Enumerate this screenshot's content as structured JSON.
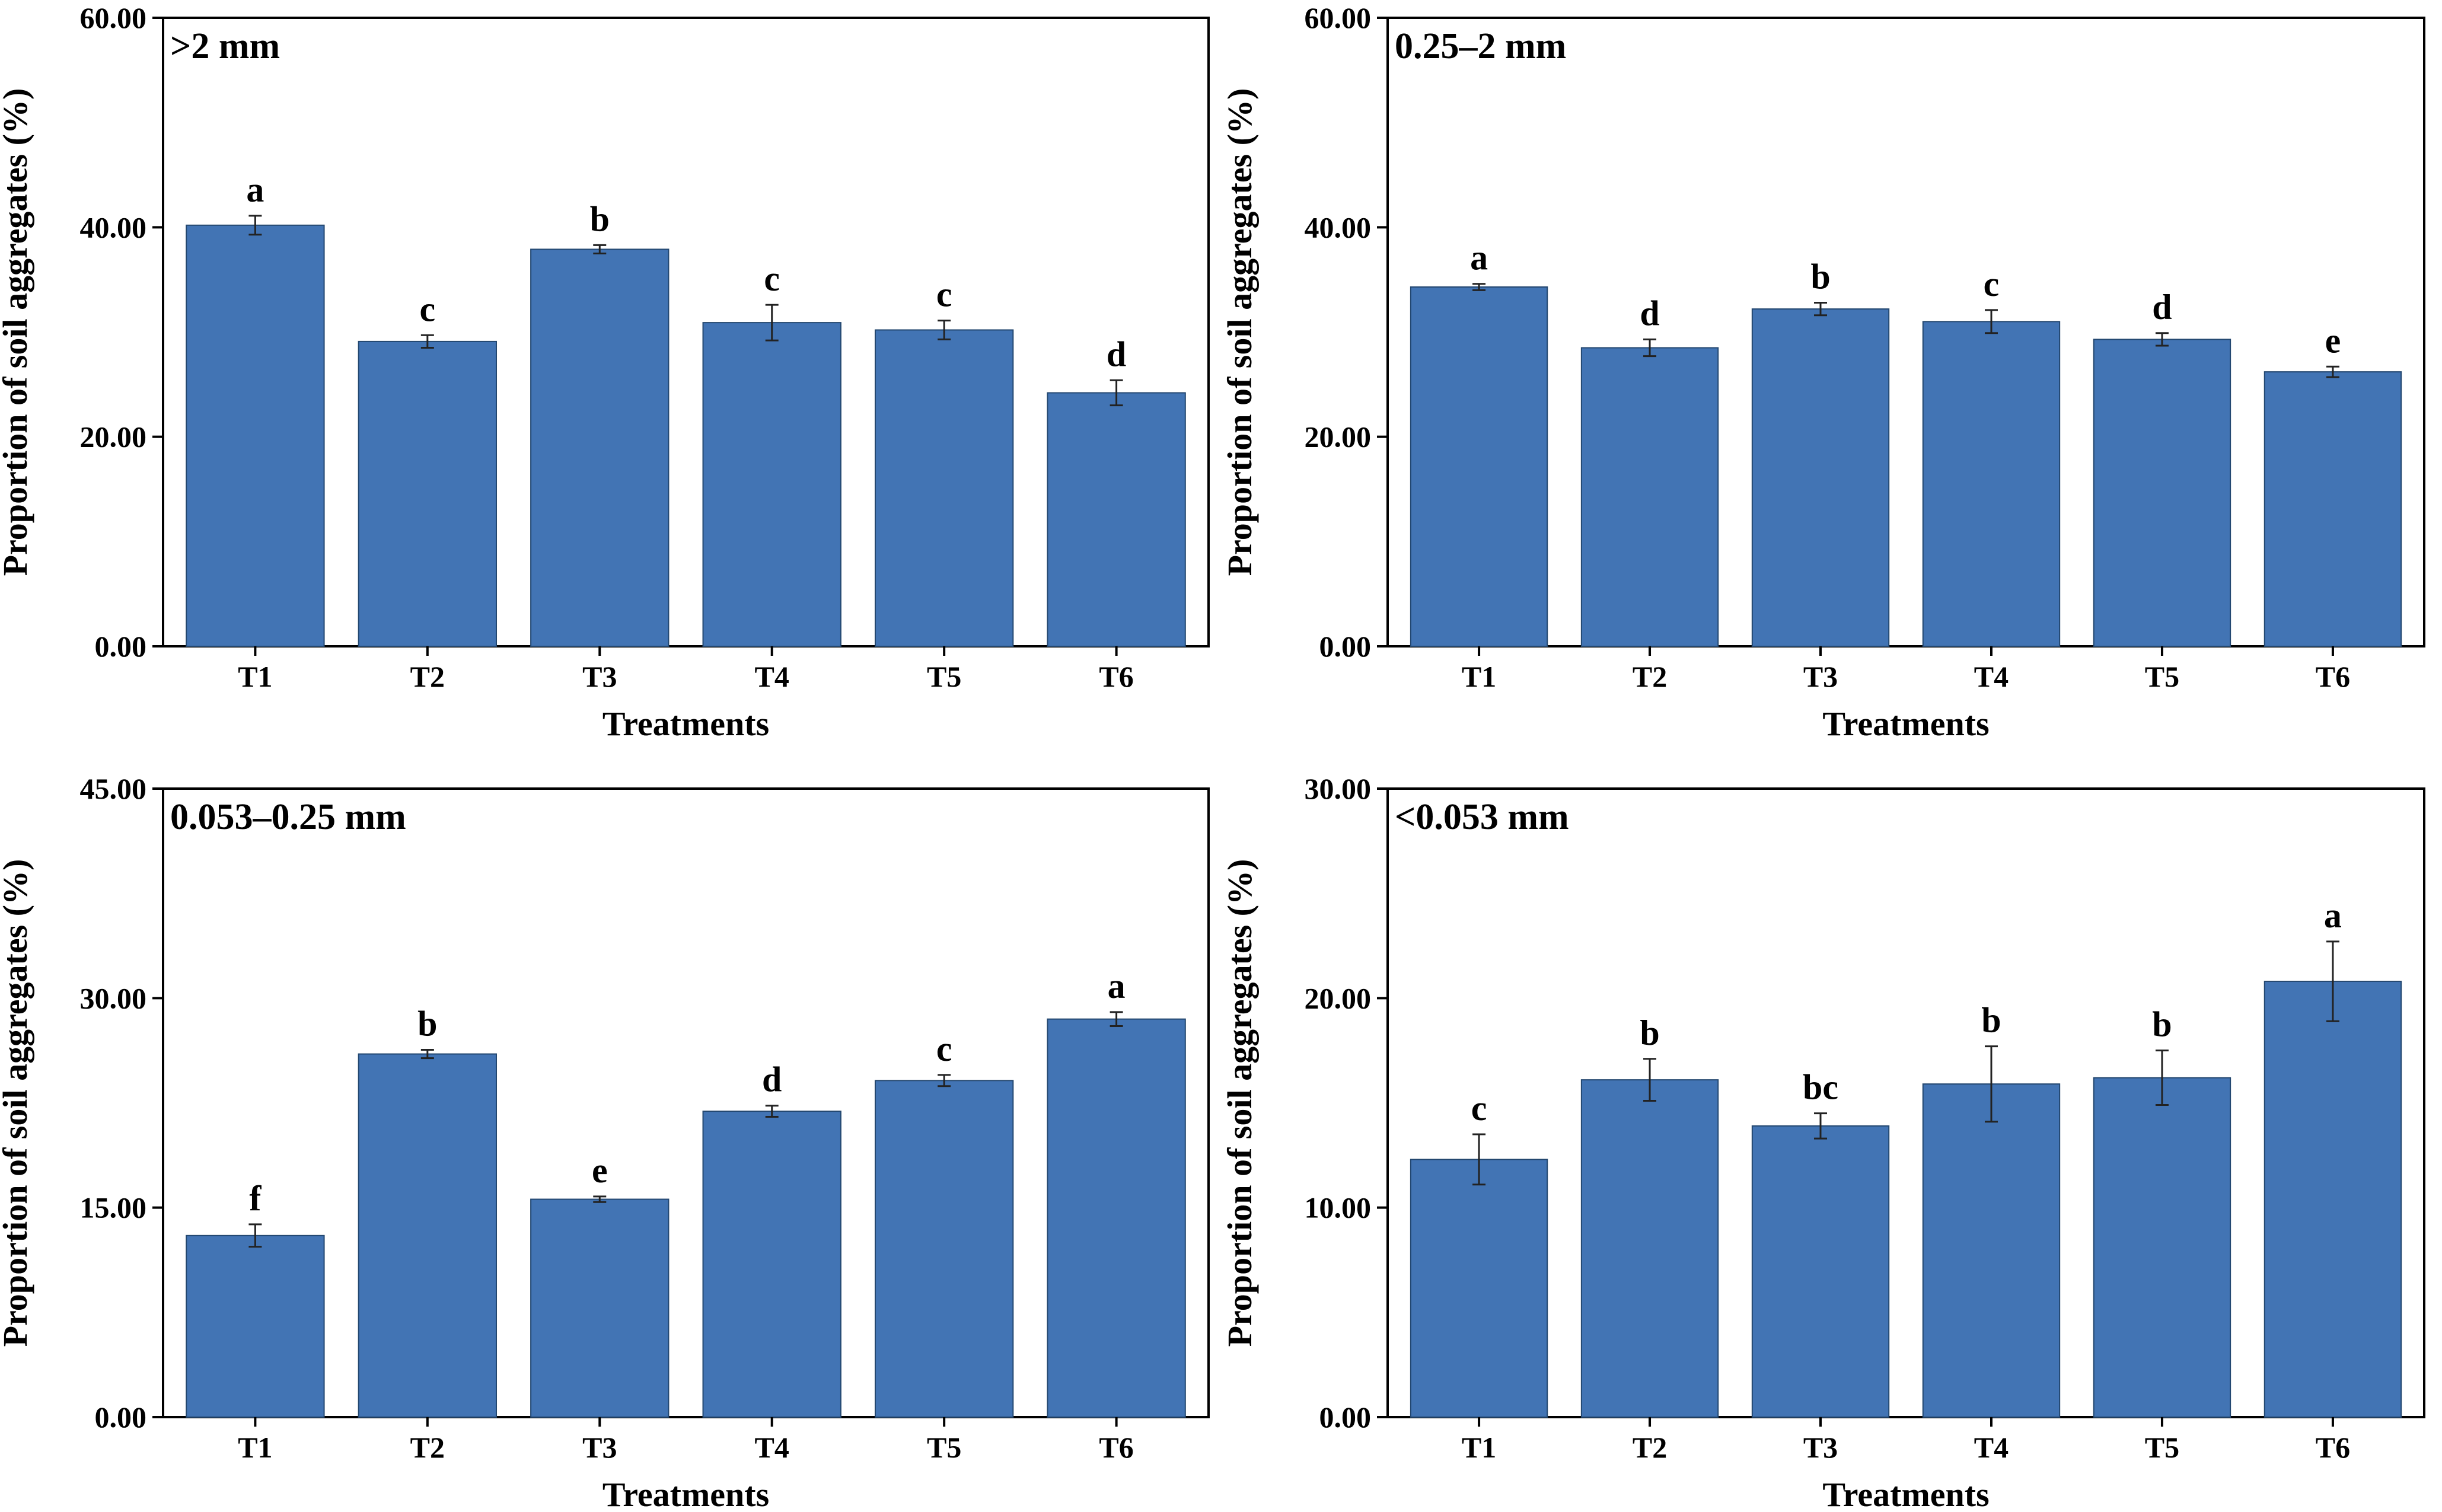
{
  "bar_color": "#4274b4",
  "chart_data": [
    {
      "type": "bar",
      "title": ">2 mm",
      "xlabel": "Treatments",
      "ylabel": "Proportion of soil aggregates (%)",
      "ylim": [
        0,
        60
      ],
      "yticks": [
        "0.00",
        "20.00",
        "40.00",
        "60.00"
      ],
      "categories": [
        "T1",
        "T2",
        "T3",
        "T4",
        "T5",
        "T6"
      ],
      "values": [
        40.2,
        29.1,
        37.9,
        30.9,
        30.2,
        24.2
      ],
      "errors": [
        0.9,
        0.6,
        0.4,
        1.7,
        0.9,
        1.2
      ],
      "letters": [
        "a",
        "c",
        "b",
        "c",
        "c",
        "d"
      ]
    },
    {
      "type": "bar",
      "title": "0.25–2 mm",
      "xlabel": "Treatments",
      "ylabel": "Proportion of soil aggregates (%)",
      "ylim": [
        0,
        60
      ],
      "yticks": [
        "0.00",
        "20.00",
        "40.00",
        "60.00"
      ],
      "categories": [
        "T1",
        "T2",
        "T3",
        "T4",
        "T5",
        "T6"
      ],
      "values": [
        34.3,
        28.5,
        32.2,
        31.0,
        29.3,
        26.2
      ],
      "errors": [
        0.3,
        0.8,
        0.6,
        1.1,
        0.6,
        0.5
      ],
      "letters": [
        "a",
        "d",
        "b",
        "c",
        "d",
        "e"
      ]
    },
    {
      "type": "bar",
      "title": "0.053–0.25 mm",
      "xlabel": "Treatments",
      "ylabel": "Proportion of soil aggregates (%)",
      "ylim": [
        0,
        45
      ],
      "yticks": [
        "0.00",
        "15.00",
        "30.00",
        "45.00"
      ],
      "categories": [
        "T1",
        "T2",
        "T3",
        "T4",
        "T5",
        "T6"
      ],
      "values": [
        13.0,
        26.0,
        15.6,
        21.9,
        24.1,
        28.5
      ],
      "errors": [
        0.8,
        0.3,
        0.2,
        0.4,
        0.4,
        0.5
      ],
      "letters": [
        "f",
        "b",
        "e",
        "d",
        "c",
        "a"
      ]
    },
    {
      "type": "bar",
      "title": "<0.053 mm",
      "xlabel": "Treatments",
      "ylabel": "Proportion of soil aggregates (%)",
      "ylim": [
        0,
        30
      ],
      "yticks": [
        "0.00",
        "10.00",
        "20.00",
        "30.00"
      ],
      "categories": [
        "T1",
        "T2",
        "T3",
        "T4",
        "T5",
        "T6"
      ],
      "values": [
        12.3,
        16.1,
        13.9,
        15.9,
        16.2,
        20.8
      ],
      "errors": [
        1.2,
        1.0,
        0.6,
        1.8,
        1.3,
        1.9
      ],
      "letters": [
        "c",
        "b",
        "bc",
        "b",
        "b",
        "a"
      ]
    }
  ]
}
